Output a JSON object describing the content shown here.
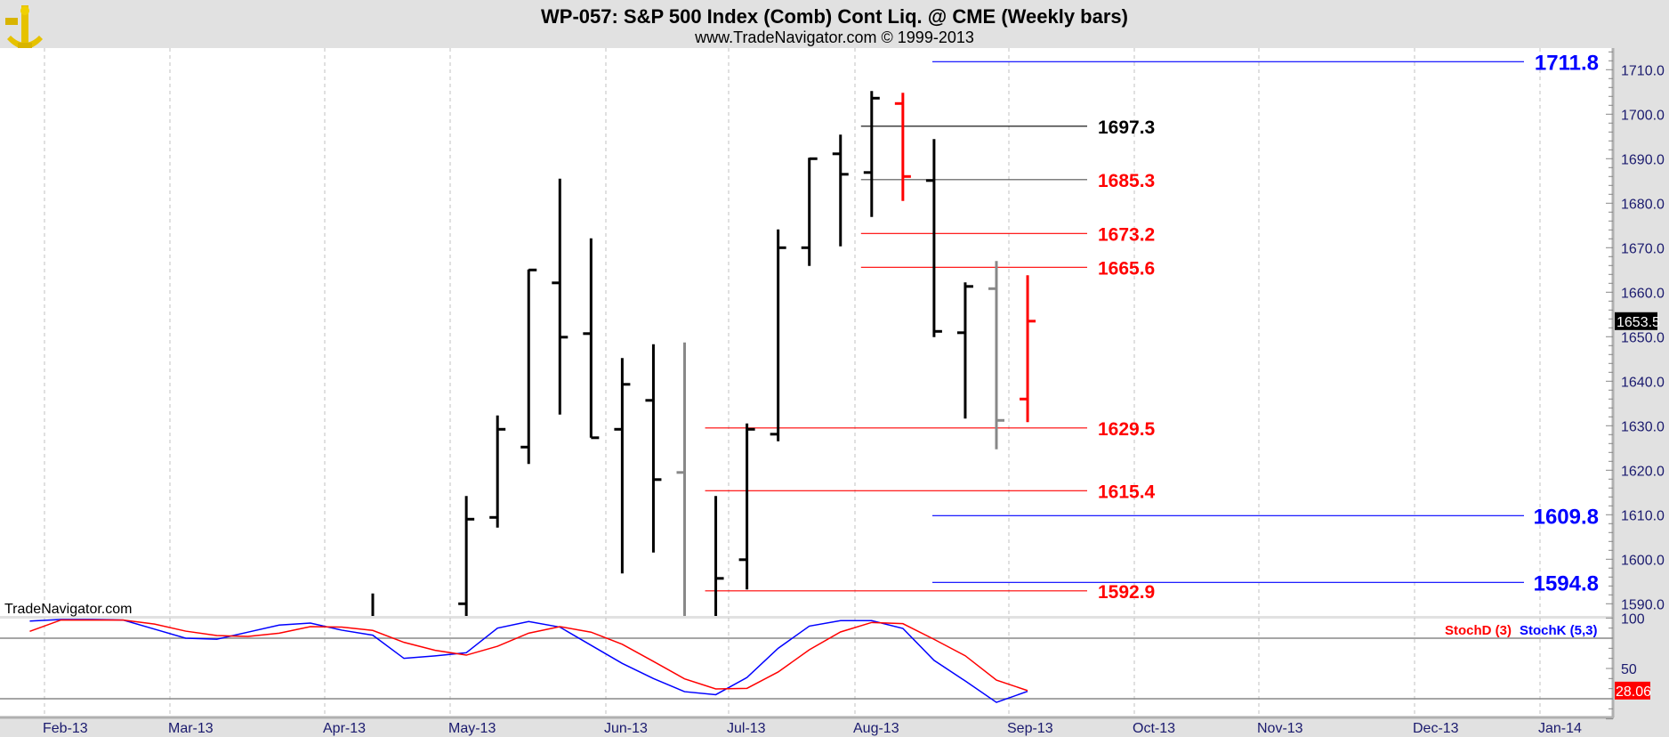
{
  "header": {
    "title": "WP-057:  S&P 500 Index (Comb) Cont Liq. @ CME  (Weekly bars)",
    "subtitle": "www.TradeNavigator.com © 1999-2013",
    "logo": "TradeNavigator sextant logo"
  },
  "watermark": "TradeNavigator.com",
  "colors": {
    "up": "#000000",
    "down": "#ff0000",
    "neutral": "#888888",
    "blue": "#0000ff",
    "red": "#ff0000",
    "axis_text": "#1a1a6e",
    "grid": "#c0c0c0"
  },
  "chart_data": [
    {
      "type": "ohlc",
      "title": "S&P 500 Index (Comb) Cont Liq. @ CME (Weekly bars)",
      "ylim": [
        1588,
        1715
      ],
      "y_ticks": [
        "1710.0",
        "1700.0",
        "1690.0",
        "1680.0",
        "1670.0",
        "1660.0",
        "1650.0",
        "1640.0",
        "1630.0",
        "1620.0",
        "1610.0",
        "1600.0",
        "1590.0"
      ],
      "x_ticks": [
        "Feb-13",
        "Mar-13",
        "Apr-13",
        "May-13",
        "Jun-13",
        "Jul-13",
        "Aug-13",
        "Sep-13",
        "Oct-13",
        "Nov-13",
        "Dec-13",
        "Jan-14"
      ],
      "last_price": "1653.5",
      "bars": [
        {
          "week": 0,
          "open": 1580,
          "high": 1592.3,
          "low": 1575,
          "close": 1585,
          "color": "up"
        },
        {
          "week": 3,
          "open": 1590,
          "high": 1614.2,
          "low": 1580,
          "close": 1609,
          "color": "up"
        },
        {
          "week": 4,
          "open": 1609.4,
          "high": 1632.3,
          "low": 1607.1,
          "close": 1629.2,
          "color": "up"
        },
        {
          "week": 5,
          "open": 1625.2,
          "high": 1665.1,
          "low": 1621.4,
          "close": 1665,
          "color": "up"
        },
        {
          "week": 6,
          "open": 1662.1,
          "high": 1685.5,
          "low": 1632.5,
          "close": 1649.9,
          "color": "up"
        },
        {
          "week": 7,
          "open": 1650.7,
          "high": 1672.1,
          "low": 1627.3,
          "close": 1627.3,
          "color": "up"
        },
        {
          "week": 8,
          "open": 1629.2,
          "high": 1645.2,
          "low": 1596.8,
          "close": 1639.3,
          "color": "up"
        },
        {
          "week": 9,
          "open": 1635.7,
          "high": 1648.3,
          "low": 1601.5,
          "close": 1617.9,
          "color": "up"
        },
        {
          "week": 10,
          "open": 1619.5,
          "high": 1648.7,
          "low": 1570,
          "close": 1580,
          "color": "neutral"
        },
        {
          "week": 11,
          "open": 1585,
          "high": 1614.2,
          "low": 1575,
          "close": 1595.7,
          "color": "up"
        },
        {
          "week": 12,
          "open": 1599.9,
          "high": 1630.5,
          "low": 1593.2,
          "close": 1629.2,
          "color": "up"
        },
        {
          "week": 13,
          "open": 1628.1,
          "high": 1674.1,
          "low": 1626.5,
          "close": 1670,
          "color": "up"
        },
        {
          "week": 14,
          "open": 1670,
          "high": 1690.2,
          "low": 1665.9,
          "close": 1690,
          "color": "up"
        },
        {
          "week": 15,
          "open": 1691.1,
          "high": 1695.4,
          "low": 1670.3,
          "close": 1686.5,
          "color": "up"
        },
        {
          "week": 16,
          "open": 1686.9,
          "high": 1705.2,
          "low": 1676.9,
          "close": 1703.6,
          "color": "up"
        },
        {
          "week": 17,
          "open": 1702.4,
          "high": 1704.8,
          "low": 1680.5,
          "close": 1686,
          "color": "down"
        },
        {
          "week": 18,
          "open": 1685.1,
          "high": 1694.4,
          "low": 1649.9,
          "close": 1651.2,
          "color": "up"
        },
        {
          "week": 19,
          "open": 1650.9,
          "high": 1662.2,
          "low": 1631.6,
          "close": 1661.3,
          "color": "up"
        },
        {
          "week": 20,
          "open": 1660.8,
          "high": 1667,
          "low": 1624.7,
          "close": 1631.2,
          "color": "neutral"
        },
        {
          "week": 21,
          "open": 1636,
          "high": 1663.8,
          "low": 1630.8,
          "close": 1653.5,
          "color": "down"
        }
      ],
      "levels": [
        {
          "value": 1711.8,
          "label": "1711.8",
          "color": "blue",
          "from_week": 18,
          "style": "far"
        },
        {
          "value": 1697.3,
          "label": "1697.3",
          "color": "black",
          "from_week": 16,
          "style": "near"
        },
        {
          "value": 1685.3,
          "label": "1685.3",
          "color": "red",
          "line_color": "#555555",
          "from_week": 16,
          "style": "near"
        },
        {
          "value": 1673.2,
          "label": "1673.2",
          "color": "red",
          "from_week": 16,
          "style": "near"
        },
        {
          "value": 1665.6,
          "label": "1665.6",
          "color": "red",
          "from_week": 16,
          "style": "near"
        },
        {
          "value": 1629.5,
          "label": "1629.5",
          "color": "red",
          "from_week": 11,
          "style": "near"
        },
        {
          "value": 1615.4,
          "label": "1615.4",
          "color": "red",
          "from_week": 11,
          "style": "near"
        },
        {
          "value": 1609.8,
          "label": "1609.8",
          "color": "blue",
          "from_week": 18,
          "style": "far"
        },
        {
          "value": 1594.8,
          "label": "1594.8",
          "color": "blue",
          "from_week": 18,
          "style": "far"
        },
        {
          "value": 1592.9,
          "label": "1592.9",
          "color": "red",
          "from_week": 11,
          "style": "near"
        }
      ]
    },
    {
      "type": "line",
      "title": "Stochastic",
      "ylim": [
        0,
        100
      ],
      "y_ticks": [
        "100",
        "50"
      ],
      "reference_lines": [
        80,
        20
      ],
      "legend": [
        "StochD (3)",
        "StochK (5,3)"
      ],
      "last_value": "28.06",
      "weeks": [
        -11,
        -10,
        -9,
        -8,
        -7,
        -6,
        -5,
        -4,
        -3,
        -2,
        -1,
        0,
        1,
        2,
        3,
        4,
        5,
        6,
        7,
        8,
        9,
        10,
        11,
        12,
        13,
        14,
        15,
        16,
        17,
        18,
        19,
        20,
        21
      ],
      "series": [
        {
          "name": "StochD (3)",
          "color": "#ff0000",
          "values": [
            86.8,
            98,
            98,
            98,
            94,
            87,
            82.6,
            81.8,
            85,
            91.5,
            91,
            87.7,
            75.9,
            68,
            63.2,
            72,
            85,
            91.5,
            86,
            74,
            57,
            39.7,
            29.7,
            30.3,
            46.5,
            68.5,
            86.2,
            95.6,
            94.4,
            78.9,
            62.6,
            38.5,
            28.06
          ]
        },
        {
          "name": "StochK (5,3)",
          "color": "#0000ff",
          "values": [
            97,
            98.5,
            98.5,
            98,
            89,
            80,
            79,
            86,
            93,
            95,
            88,
            83,
            60,
            62.5,
            65.6,
            90,
            96.5,
            91,
            73,
            55,
            40,
            27,
            24,
            41,
            70,
            92,
            97.4,
            97.4,
            89.7,
            58,
            37.6,
            16.4,
            27.3
          ]
        }
      ]
    }
  ]
}
